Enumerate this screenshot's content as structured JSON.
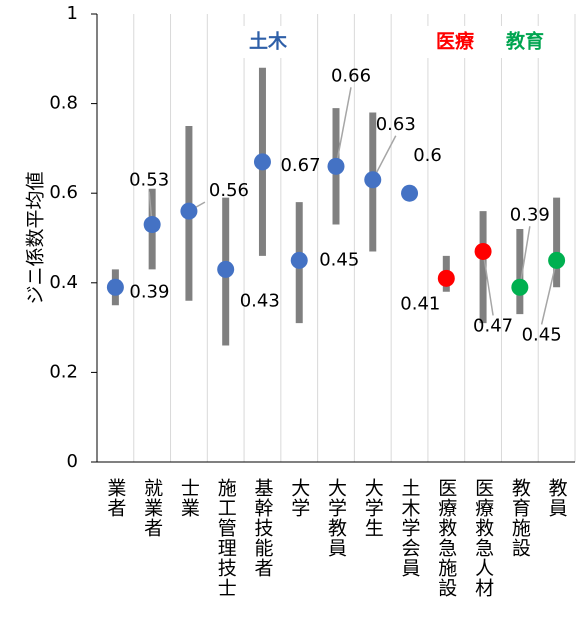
{
  "chart_data": {
    "type": "scatter",
    "ylabel": "ジニ係数平均値",
    "ylim": [
      0,
      1
    ],
    "yticks": [
      "0",
      "0.2",
      "0.4",
      "0.6",
      "0.8",
      "1"
    ],
    "ytick_values": [
      0,
      0.2,
      0.4,
      0.6,
      0.8,
      1
    ],
    "grid": "vertical",
    "categories": [
      "業者",
      "就業者",
      "士業",
      "施工管理技士",
      "基幹技能者",
      "大学",
      "大学教員",
      "大学生",
      "土木学会員",
      "医療救急施設",
      "医療救急人材",
      "教育施設",
      "教員"
    ],
    "groups": [
      {
        "name": "土木",
        "color": "#2e5fa8",
        "from": 0,
        "to": 8
      },
      {
        "name": "医療",
        "color": "#ff0000",
        "from": 9,
        "to": 10
      },
      {
        "name": "教育",
        "color": "#00a550",
        "from": 11,
        "to": 12
      }
    ],
    "points": [
      {
        "value": 0.39,
        "low": 0.35,
        "high": 0.43,
        "label": "0.39",
        "color": "#4472c4"
      },
      {
        "value": 0.53,
        "low": 0.43,
        "high": 0.61,
        "label": "0.53",
        "color": "#4472c4"
      },
      {
        "value": 0.56,
        "low": 0.36,
        "high": 0.75,
        "label": "0.56",
        "color": "#4472c4"
      },
      {
        "value": 0.43,
        "low": 0.26,
        "high": 0.59,
        "label": "0.43",
        "color": "#4472c4"
      },
      {
        "value": 0.67,
        "low": 0.46,
        "high": 0.88,
        "label": "0.67",
        "color": "#4472c4"
      },
      {
        "value": 0.45,
        "low": 0.31,
        "high": 0.58,
        "label": "0.45",
        "color": "#4472c4"
      },
      {
        "value": 0.66,
        "low": 0.53,
        "high": 0.79,
        "label": "0.66",
        "color": "#4472c4"
      },
      {
        "value": 0.63,
        "low": 0.47,
        "high": 0.78,
        "label": "0.63",
        "color": "#4472c4"
      },
      {
        "value": 0.6,
        "low": 0.6,
        "high": 0.6,
        "label": "0.6",
        "color": "#4472c4"
      },
      {
        "value": 0.41,
        "low": 0.38,
        "high": 0.46,
        "label": "0.41",
        "color": "#ff0000"
      },
      {
        "value": 0.47,
        "low": 0.31,
        "high": 0.56,
        "label": "0.47",
        "color": "#ff0000"
      },
      {
        "value": 0.39,
        "low": 0.33,
        "high": 0.52,
        "label": "0.39",
        "color": "#00b050"
      },
      {
        "value": 0.45,
        "low": 0.39,
        "high": 0.59,
        "label": "0.45",
        "color": "#00b050"
      }
    ],
    "colors": {
      "range_bar": "#808080",
      "grid": "#d9d9d9",
      "axis": "#000000",
      "leader": "#a6a6a6"
    }
  }
}
